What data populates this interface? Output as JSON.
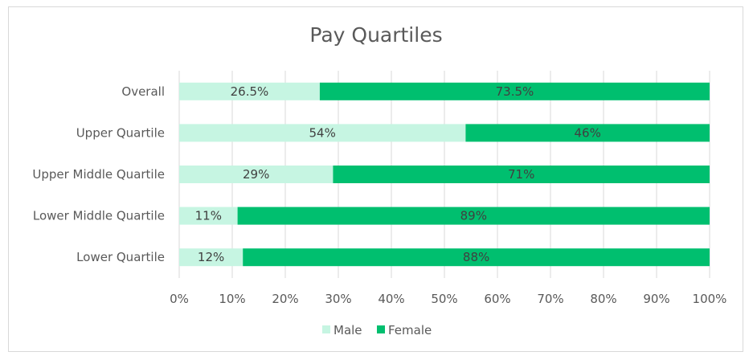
{
  "chart_data": {
    "type": "bar",
    "orientation": "horizontal",
    "stacked": "percent",
    "title": "Pay Quartiles",
    "categories": [
      "Overall",
      "Upper Quartile",
      "Upper Middle Quartile",
      "Lower Middle Quartile",
      "Lower Quartile"
    ],
    "series": [
      {
        "name": "Male",
        "color": "#c6f5e2",
        "values": [
          26.5,
          54,
          29,
          11,
          12
        ],
        "labels": [
          "26.5%",
          "54%",
          "29%",
          "11%",
          "12%"
        ]
      },
      {
        "name": "Female",
        "color": "#00bf6f",
        "values": [
          73.5,
          46,
          71,
          89,
          88
        ],
        "labels": [
          "73.5%",
          "46%",
          "71%",
          "89%",
          "88%"
        ]
      }
    ],
    "xlim": [
      0,
      100
    ],
    "xticks": [
      "0%",
      "10%",
      "20%",
      "30%",
      "40%",
      "50%",
      "60%",
      "70%",
      "80%",
      "90%",
      "100%"
    ],
    "grid": true,
    "legend": "bottom"
  }
}
